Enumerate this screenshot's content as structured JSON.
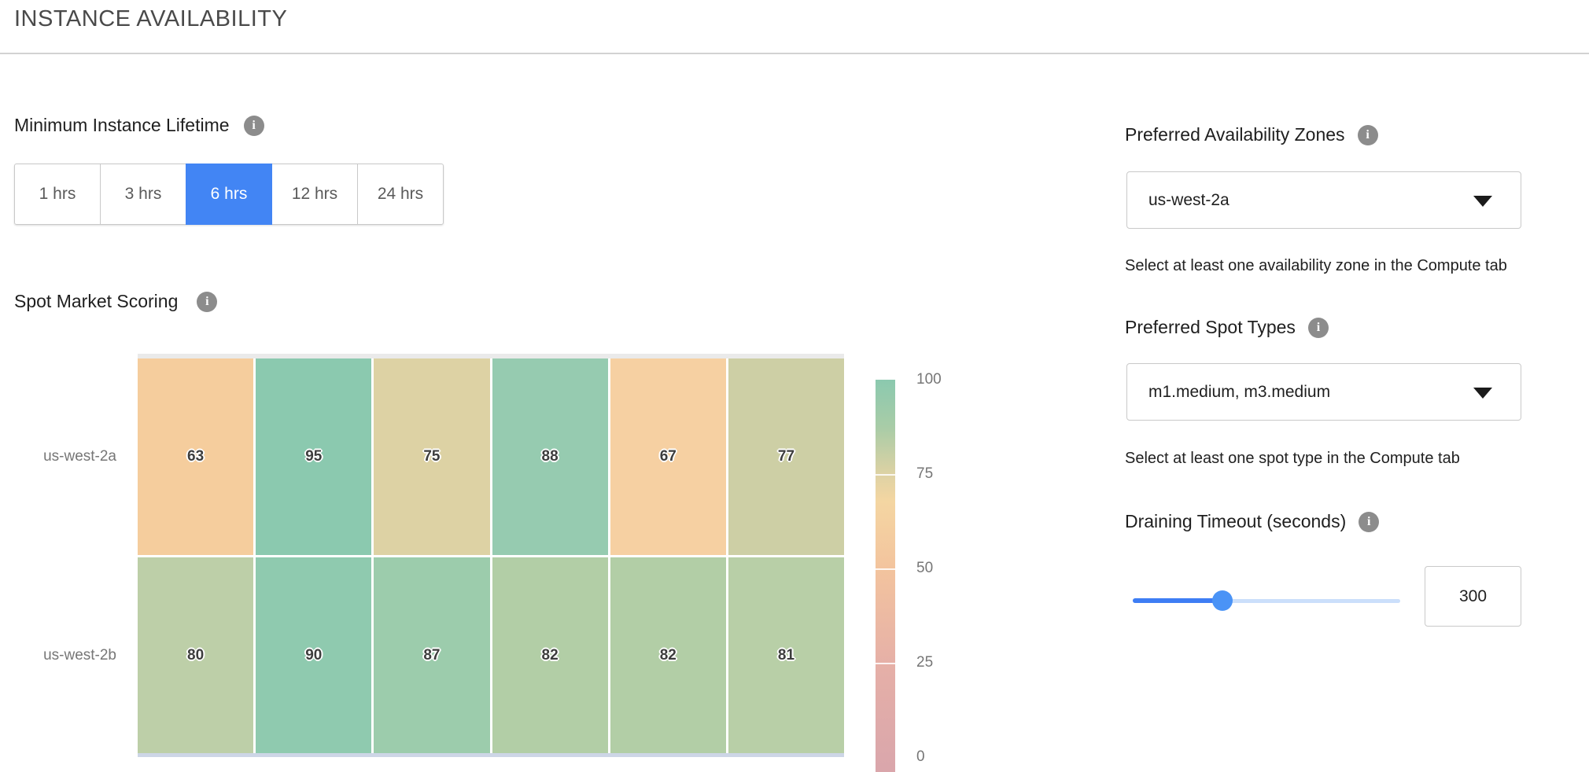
{
  "header": {
    "title": "INSTANCE AVAILABILITY"
  },
  "icons": {
    "info_glyph": "i"
  },
  "colors": {
    "accent_blue": "#4285F4",
    "slider_fill_blue": "#3E7DF4",
    "slider_track_blue": "#CBDFFB",
    "info_icon_gray": "#8C8C8C",
    "divider_gray": "#D2D2D2"
  },
  "lifetime": {
    "label": "Minimum Instance Lifetime",
    "options": [
      {
        "label": "1 hrs",
        "selected": false
      },
      {
        "label": "3 hrs",
        "selected": false
      },
      {
        "label": "6 hrs",
        "selected": true
      },
      {
        "label": "12 hrs",
        "selected": false
      },
      {
        "label": "24 hrs",
        "selected": false
      }
    ]
  },
  "spot_scoring": {
    "label": "Spot Market Scoring"
  },
  "chart_data": {
    "type": "heatmap",
    "title": "Spot Market Scoring",
    "rows": [
      "us-west-2a",
      "us-west-2b"
    ],
    "num_columns": 6,
    "x_tick_labels_visible": false,
    "values": [
      [
        63,
        95,
        75,
        88,
        67,
        77
      ],
      [
        80,
        90,
        87,
        82,
        82,
        81
      ]
    ],
    "cell_colors": [
      [
        "#F5CD9D",
        "#8BC9AF",
        "#DDD2A4",
        "#96CBB0",
        "#F6D0A2",
        "#CDCFA5"
      ],
      [
        "#BDCFA8",
        "#8FCAAF",
        "#9CCCAC",
        "#B2CEA6",
        "#B2CEA6",
        "#B8CFA7"
      ]
    ],
    "value_range": [
      0,
      100
    ],
    "legend_position": "right",
    "colorbar": {
      "ticks": [
        "100",
        "75",
        "50",
        "25",
        "0"
      ],
      "gradient": [
        {
          "pos": 0,
          "color": "#8BC9AF"
        },
        {
          "pos": 12,
          "color": "#A8CCA7"
        },
        {
          "pos": 24,
          "color": "#DDD2A4"
        },
        {
          "pos": 31,
          "color": "#F4D6A2"
        },
        {
          "pos": 48,
          "color": "#F3C49E"
        },
        {
          "pos": 72,
          "color": "#E6B0A7"
        },
        {
          "pos": 96,
          "color": "#DBA7AB"
        },
        {
          "pos": 100,
          "color": "#DAA6AB"
        }
      ]
    }
  },
  "zones": {
    "label": "Preferred Availability Zones",
    "value": "us-west-2a",
    "helper": "Select at least one availability zone in the Compute tab"
  },
  "spot_types": {
    "label": "Preferred Spot Types",
    "value": "m1.medium, m3.medium",
    "helper": "Select at least one spot type in the Compute tab"
  },
  "draining": {
    "label": "Draining Timeout (seconds)",
    "value": "300",
    "slider_percent": 33.5
  }
}
